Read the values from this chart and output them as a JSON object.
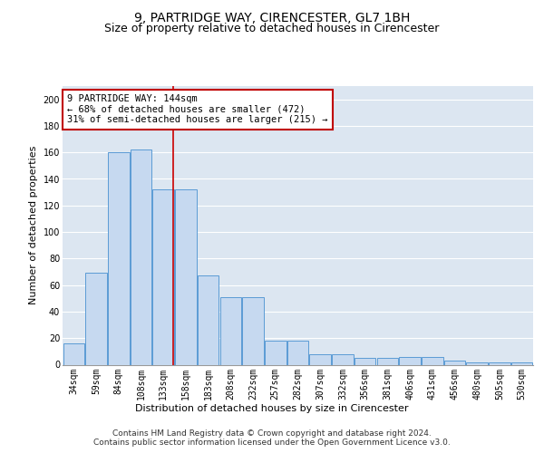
{
  "title": "9, PARTRIDGE WAY, CIRENCESTER, GL7 1BH",
  "subtitle": "Size of property relative to detached houses in Cirencester",
  "xlabel": "Distribution of detached houses by size in Cirencester",
  "ylabel": "Number of detached properties",
  "bar_labels": [
    "34sqm",
    "59sqm",
    "84sqm",
    "108sqm",
    "133sqm",
    "158sqm",
    "183sqm",
    "208sqm",
    "232sqm",
    "257sqm",
    "282sqm",
    "307sqm",
    "332sqm",
    "356sqm",
    "381sqm",
    "406sqm",
    "431sqm",
    "456sqm",
    "480sqm",
    "505sqm",
    "530sqm"
  ],
  "bar_values": [
    16,
    69,
    160,
    162,
    132,
    132,
    67,
    51,
    51,
    18,
    18,
    8,
    8,
    5,
    5,
    6,
    6,
    3,
    2,
    2,
    2
  ],
  "bar_color": "#c6d9f0",
  "bar_edge_color": "#5b9bd5",
  "background_color": "#dce6f1",
  "grid_color": "#ffffff",
  "annotation_text": "9 PARTRIDGE WAY: 144sqm\n← 68% of detached houses are smaller (472)\n31% of semi-detached houses are larger (215) →",
  "annotation_box_color": "#ffffff",
  "annotation_box_edge": "#c00000",
  "footer_text": "Contains HM Land Registry data © Crown copyright and database right 2024.\nContains public sector information licensed under the Open Government Licence v3.0.",
  "ylim": [
    0,
    210
  ],
  "title_fontsize": 10,
  "subtitle_fontsize": 9,
  "ylabel_fontsize": 8,
  "xlabel_fontsize": 8,
  "tick_fontsize": 7,
  "footer_fontsize": 6.5,
  "annot_fontsize": 7.5
}
